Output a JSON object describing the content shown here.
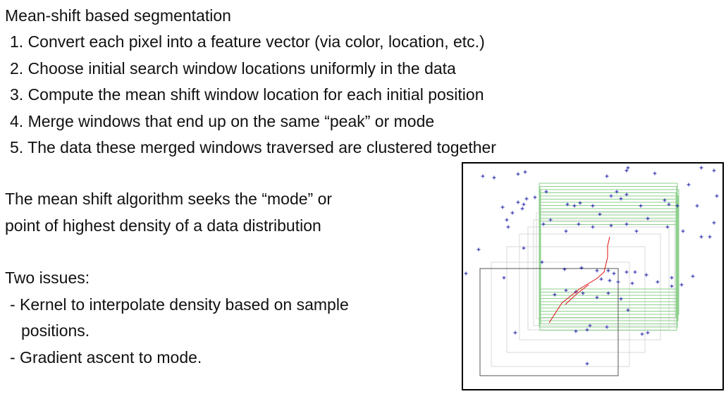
{
  "title": "Mean-shift based segmentation",
  "steps": [
    "1. Convert each pixel into a feature vector (via color, location, etc.)",
    "2. Choose initial search window locations uniformly in the data",
    "3. Compute the mean shift window location for each initial position",
    "4. Merge windows that end up on the same “peak” or mode",
    "5. The data these merged windows traversed are clustered together"
  ],
  "description": [
    "The mean shift algorithm seeks the “mode” or",
    "point of highest density of a data distribution"
  ],
  "issues": {
    "heading": "Two issues:",
    "items": [
      "- Kernel to interpolate density based on sample",
      "positions.",
      "- Gradient ascent to mode."
    ]
  },
  "figure": {
    "colors": {
      "points": "#1a1aa8",
      "initial_window": "#555555",
      "trajectory_windows": "#d8d8d8",
      "converged_windows": "#8ed08e",
      "path": "#e01010"
    }
  }
}
